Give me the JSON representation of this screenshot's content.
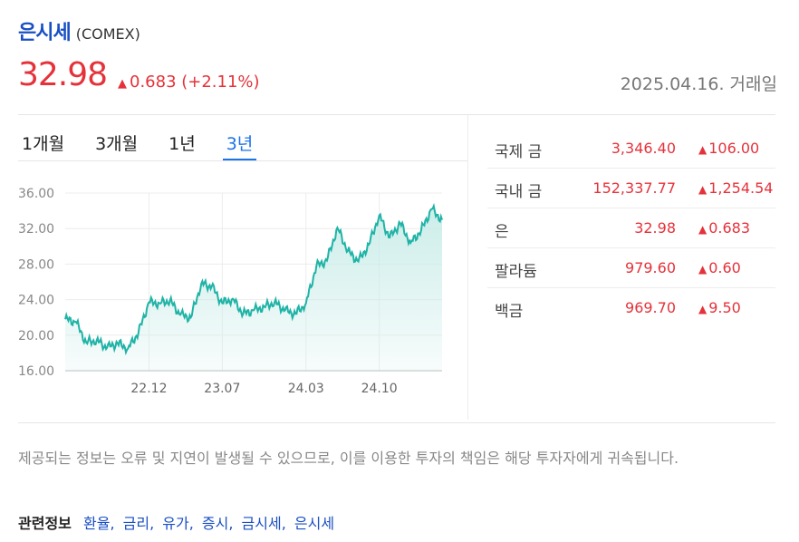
{
  "header": {
    "name": "은시세",
    "exchange": "(COMEX)"
  },
  "quote": {
    "price": "32.98",
    "change": "0.683 (+2.11%)",
    "change_up_icon": "triangle-up-icon",
    "date": "2025.04.16. 거래일"
  },
  "tabs": [
    {
      "label": "1개월",
      "active": false
    },
    {
      "label": "3개월",
      "active": false
    },
    {
      "label": "1년",
      "active": false
    },
    {
      "label": "3년",
      "active": true
    }
  ],
  "chart_data": {
    "type": "area",
    "yticks": [
      "36.00",
      "32.00",
      "28.00",
      "24.00",
      "20.00",
      "16.00"
    ],
    "xticks": [
      "22.12",
      "23.07",
      "24.03",
      "24.10"
    ],
    "ylim": [
      16,
      36
    ],
    "line_color": "#1fb3a6",
    "fill_color": "#c9ece8",
    "x": [
      "2022-04",
      "2022-05",
      "2022-06",
      "2022-07",
      "2022-08",
      "2022-09",
      "2022-10",
      "2022-11",
      "2022-12",
      "2023-01",
      "2023-02",
      "2023-03",
      "2023-04",
      "2023-05",
      "2023-06",
      "2023-07",
      "2023-08",
      "2023-09",
      "2023-10",
      "2023-11",
      "2023-12",
      "2024-01",
      "2024-02",
      "2024-03",
      "2024-04",
      "2024-05",
      "2024-06",
      "2024-07",
      "2024-08",
      "2024-09",
      "2024-10",
      "2024-11",
      "2024-12",
      "2025-01",
      "2025-02",
      "2025-03",
      "2025-04"
    ],
    "values": [
      21.8,
      21.5,
      19.2,
      19.4,
      18.6,
      19.1,
      18.5,
      20.3,
      23.7,
      23.6,
      23.9,
      22.3,
      22.0,
      25.8,
      25.5,
      23.6,
      24.1,
      22.4,
      22.8,
      23.2,
      23.7,
      22.8,
      22.4,
      23.6,
      27.8,
      28.4,
      32.1,
      29.5,
      28.3,
      30.2,
      33.5,
      31.0,
      32.6,
      30.4,
      31.8,
      34.2,
      32.98
    ]
  },
  "metals": [
    {
      "name": "국제 금",
      "value": "3,346.40",
      "change": "106.00"
    },
    {
      "name": "국내 금",
      "value": "152,337.77",
      "change": "1,254.54"
    },
    {
      "name": "은",
      "value": "32.98",
      "change": "0.683"
    },
    {
      "name": "팔라듐",
      "value": "979.60",
      "change": "0.60"
    },
    {
      "name": "백금",
      "value": "969.70",
      "change": "9.50"
    }
  ],
  "disclaimer": "제공되는 정보는 오류 및 지연이 발생될 수 있으므로, 이를 이용한 투자의 책임은 해당 투자자에게 귀속됩니다.",
  "related": {
    "label": "관련정보",
    "links": [
      "환율",
      "금리",
      "유가",
      "증시",
      "금시세",
      "은시세"
    ]
  },
  "colors": {
    "up": "#e5323a",
    "link": "#1a4fc4",
    "tab_active": "#1a73e8"
  }
}
